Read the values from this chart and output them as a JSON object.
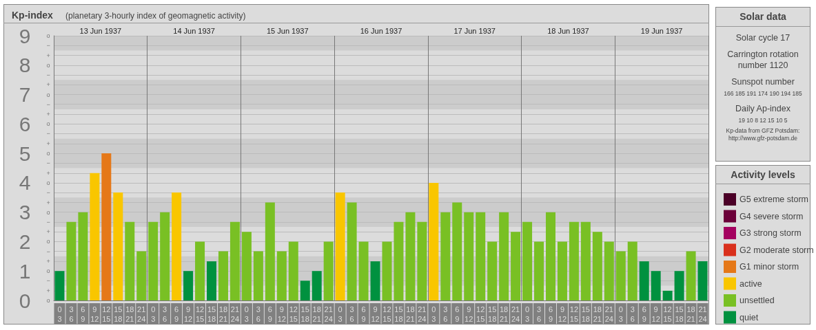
{
  "chart_data": [
    {
      "type": "bar",
      "title": "Kp-index",
      "subtitle": "(planetary 3-hourly index of geomagnetic activity)",
      "legend_title": "Activity levels",
      "annotations": [
        "13 Jun 1937",
        "14 Jun 1937",
        "15 Jun 1937",
        "16 Jun 1937",
        "17 Jun 1937",
        "18 Jun 1937",
        "19 Jun 1937",
        "o",
        "+",
        "−",
        "o",
        "+",
        "−",
        "o",
        "+",
        "−",
        "o",
        "+",
        "−",
        "o",
        "+",
        "−",
        "o",
        "+",
        "−",
        "o",
        "+",
        "−",
        "o",
        "+",
        "−",
        "o",
        "+",
        "−",
        "o"
      ],
      "categories": [
        "0\n3",
        "3\n6",
        "6\n9",
        "9\n12",
        "12\n15",
        "15\n18",
        "18\n21",
        "21\n24",
        "0\n3",
        "3\n6",
        "6\n9",
        "9\n12",
        "12\n15",
        "15\n18",
        "18\n21",
        "21\n24",
        "0\n3",
        "3\n6",
        "6\n9",
        "9\n12",
        "12\n15",
        "15\n18",
        "18\n21",
        "21\n24",
        "0\n3",
        "3\n6",
        "6\n9",
        "9\n12",
        "12\n15",
        "15\n18",
        "18\n21",
        "21\n24",
        "0\n3",
        "3\n6",
        "6\n9",
        "9\n12",
        "12\n15",
        "15\n18",
        "18\n21",
        "21\n24",
        "0\n3",
        "3\n6",
        "6\n9",
        "9\n12",
        "12\n15",
        "15\n18",
        "18\n21",
        "21\n24",
        "0\n3",
        "3\n6",
        "6\n9",
        "9\n12",
        "12\n15",
        "15\n18",
        "18\n21",
        "21\n24"
      ],
      "series": [
        {
          "name": "G5 extreme storm",
          "color": "#4b0027",
          "values": [
            null,
            null,
            null,
            null,
            null,
            null,
            null,
            null,
            null,
            null,
            null,
            null,
            null,
            null,
            null,
            null,
            null,
            null,
            null,
            null,
            null,
            null,
            null,
            null,
            null,
            null,
            null,
            null,
            null,
            null,
            null,
            null,
            null,
            null,
            null,
            null,
            null,
            null,
            null,
            null,
            null,
            null,
            null,
            null,
            null,
            null,
            null,
            null,
            null,
            null,
            null,
            null,
            null,
            null,
            null,
            null
          ]
        },
        {
          "name": "G4 severe storm",
          "color": "#6b0039",
          "values": [
            null,
            null,
            null,
            null,
            null,
            null,
            null,
            null,
            null,
            null,
            null,
            null,
            null,
            null,
            null,
            null,
            null,
            null,
            null,
            null,
            null,
            null,
            null,
            null,
            null,
            null,
            null,
            null,
            null,
            null,
            null,
            null,
            null,
            null,
            null,
            null,
            null,
            null,
            null,
            null,
            null,
            null,
            null,
            null,
            null,
            null,
            null,
            null,
            null,
            null,
            null,
            null,
            null,
            null,
            null,
            null
          ]
        },
        {
          "name": "G3 strong storm",
          "color": "#a4005f",
          "values": [
            null,
            null,
            null,
            null,
            null,
            null,
            null,
            null,
            null,
            null,
            null,
            null,
            null,
            null,
            null,
            null,
            null,
            null,
            null,
            null,
            null,
            null,
            null,
            null,
            null,
            null,
            null,
            null,
            null,
            null,
            null,
            null,
            null,
            null,
            null,
            null,
            null,
            null,
            null,
            null,
            null,
            null,
            null,
            null,
            null,
            null,
            null,
            null,
            null,
            null,
            null,
            null,
            null,
            null,
            null,
            null
          ]
        },
        {
          "name": "G2 moderate storm",
          "color": "#d9301c",
          "values": [
            null,
            null,
            null,
            null,
            null,
            null,
            null,
            null,
            null,
            null,
            null,
            null,
            null,
            null,
            null,
            null,
            null,
            null,
            null,
            null,
            null,
            null,
            null,
            null,
            null,
            null,
            null,
            null,
            null,
            null,
            null,
            null,
            null,
            null,
            null,
            null,
            null,
            null,
            null,
            null,
            null,
            null,
            null,
            null,
            null,
            null,
            null,
            null,
            null,
            null,
            null,
            null,
            null,
            null,
            null,
            null
          ]
        },
        {
          "name": "G1 minor storm",
          "color": "#e57818",
          "values": [
            null,
            null,
            null,
            null,
            5,
            null,
            null,
            null,
            null,
            null,
            null,
            null,
            null,
            null,
            null,
            null,
            null,
            null,
            null,
            null,
            null,
            null,
            null,
            null,
            null,
            null,
            null,
            null,
            null,
            null,
            null,
            null,
            null,
            null,
            null,
            null,
            null,
            null,
            null,
            null,
            null,
            null,
            null,
            null,
            null,
            null,
            null,
            null,
            null,
            null,
            null,
            null,
            null,
            null,
            null,
            null
          ]
        },
        {
          "name": "active",
          "color": "#f9c600",
          "values": [
            null,
            null,
            null,
            4.33,
            null,
            3.67,
            null,
            null,
            null,
            null,
            3.67,
            null,
            null,
            null,
            null,
            null,
            null,
            null,
            null,
            null,
            null,
            null,
            null,
            null,
            3.67,
            null,
            null,
            null,
            null,
            null,
            null,
            null,
            4,
            null,
            null,
            null,
            null,
            null,
            null,
            null,
            null,
            null,
            null,
            null,
            null,
            null,
            null,
            null,
            null,
            null,
            null,
            null,
            null,
            null,
            null,
            null
          ]
        },
        {
          "name": "unsettled",
          "color": "#79c024",
          "values": [
            null,
            2.67,
            3,
            null,
            null,
            null,
            2.67,
            1.67,
            2.67,
            3,
            null,
            null,
            2,
            null,
            1.67,
            2.67,
            2.33,
            1.67,
            3.33,
            1.67,
            2,
            null,
            null,
            2,
            null,
            3.33,
            2,
            null,
            2,
            2.67,
            3,
            2.67,
            null,
            3,
            3.33,
            3,
            3,
            2,
            3,
            2.33,
            2.67,
            2,
            3,
            2,
            2.67,
            2.67,
            2.33,
            2,
            1.67,
            2,
            null,
            null,
            null,
            null,
            1.67,
            null
          ]
        },
        {
          "name": "quiet",
          "color": "#00913f",
          "values": [
            1,
            null,
            null,
            null,
            null,
            null,
            null,
            null,
            null,
            null,
            null,
            1,
            null,
            1.33,
            null,
            null,
            null,
            null,
            null,
            null,
            null,
            0.67,
            1,
            null,
            null,
            null,
            null,
            1.33,
            null,
            null,
            null,
            null,
            null,
            null,
            null,
            null,
            null,
            null,
            null,
            null,
            null,
            null,
            null,
            null,
            null,
            null,
            null,
            null,
            null,
            null,
            1.33,
            1,
            0.33,
            1,
            null,
            1.33
          ]
        }
      ],
      "ylim": [
        0,
        9
      ],
      "yticks": [
        0,
        {
          "value": 0.33,
          "label": null
        },
        {
          "value": 0.67,
          "label": null
        },
        1,
        {
          "value": 1.33,
          "label": null
        },
        {
          "value": 1.67,
          "label": null
        },
        2,
        {
          "value": 2.33,
          "label": null
        },
        {
          "value": 2.67,
          "label": null
        },
        3,
        {
          "value": 3.33,
          "label": null
        },
        {
          "value": 3.67,
          "label": null
        },
        4,
        {
          "value": 4.33,
          "label": null
        },
        {
          "value": 4.67,
          "label": null
        },
        5,
        {
          "value": 5.33,
          "label": null
        },
        {
          "value": 5.67,
          "label": null
        },
        6,
        {
          "value": 6.33,
          "label": null
        },
        {
          "value": 6.67,
          "label": null
        },
        7,
        {
          "value": 7.33,
          "label": null
        },
        {
          "value": 7.67,
          "label": null
        },
        8,
        {
          "value": 8.33,
          "label": null
        },
        {
          "value": 8.67,
          "label": null
        },
        9
      ],
      "bands": [
        {
          "axis": "y",
          "from": 0.5,
          "to": 1.5,
          "color": "#cccccc"
        },
        {
          "axis": "y",
          "from": 2.5,
          "to": 3.5,
          "color": "#cccccc"
        },
        {
          "axis": "y",
          "from": 4.5,
          "to": 5.5,
          "color": "#cccccc"
        },
        {
          "axis": "y",
          "from": 6.5,
          "to": 7.5,
          "color": "#cccccc"
        },
        {
          "axis": "y",
          "from": 8.5,
          "to": 9,
          "color": "#cccccc"
        }
      ],
      "grid": "y",
      "legend": "right"
    },
    {
      "type": "other",
      "title": "Solar data",
      "annotations": [
        "Solar cycle 17",
        "Carrington rotation number 1120",
        "Sunspot number",
        "166 185 191 174 190 194 185",
        "Daily Ap-index",
        "19 10 8 12 15 10 5",
        "Kp-data from GFZ Potsdam: http://www.gfz-potsdam.de"
      ]
    }
  ]
}
